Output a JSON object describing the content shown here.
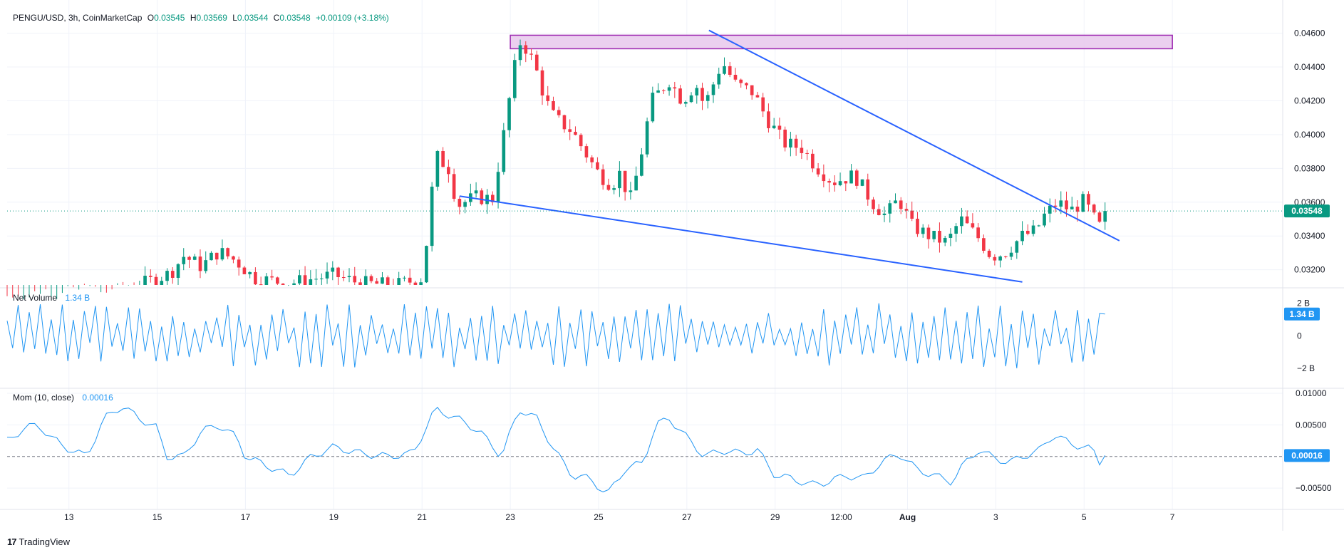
{
  "header": {
    "symbol": "PENGU/USD, 3h, CoinMarketCap",
    "o_label": "O",
    "o_value": "0.03545",
    "h_label": "H",
    "h_value": "0.03569",
    "l_label": "L",
    "l_value": "0.03544",
    "c_label": "C",
    "c_value": "0.03548",
    "change": "+0.00109 (+3.18%)"
  },
  "volume_legend": {
    "name": "Net Volume",
    "value": "1.34 B"
  },
  "mom_legend": {
    "name": "Mom (10, close)",
    "value": "0.00016"
  },
  "brand": {
    "name": "TradingView"
  },
  "colors": {
    "up": "#089981",
    "down": "#f23645",
    "trend": "#2962ff",
    "zone_fill": "#e8c8ec",
    "zone_stroke": "#9c27b0",
    "indicator": "#2196f3"
  },
  "chart_data": [
    {
      "type": "candlestick",
      "title": "PENGU/USD, 3h, CoinMarketCap",
      "price_axis_ticks": [
        "0.04600",
        "0.04400",
        "0.04200",
        "0.04000",
        "0.03800",
        "0.03600",
        "0.03400",
        "0.03200"
      ],
      "ylim": [
        0.0311,
        0.0467
      ],
      "x_tick_labels": [
        {
          "label": "13",
          "day": 13
        },
        {
          "label": "15",
          "day": 15
        },
        {
          "label": "17",
          "day": 17
        },
        {
          "label": "19",
          "day": 19
        },
        {
          "label": "21",
          "day": 21
        },
        {
          "label": "23",
          "day": 23
        },
        {
          "label": "25",
          "day": 25
        },
        {
          "label": "27",
          "day": 27
        },
        {
          "label": "29",
          "day": 29
        },
        {
          "label": "12:00",
          "day": 30.5
        },
        {
          "label": "Aug",
          "day": 32
        },
        {
          "label": "3",
          "day": 34
        },
        {
          "label": "5",
          "day": 36
        },
        {
          "label": "7",
          "day": 38
        }
      ],
      "xlim_days": [
        11.6,
        40.5
      ],
      "last_price_label": "0.03548",
      "last_price": 0.03548,
      "candles_start_day": 11.6,
      "candle_interval_days": 0.125,
      "close_path_keypoints": [
        [
          11.6,
          0.0301
        ],
        [
          14.0,
          0.0305
        ],
        [
          15.3,
          0.0318
        ],
        [
          15.6,
          0.0328
        ],
        [
          16.0,
          0.0322
        ],
        [
          16.4,
          0.0331
        ],
        [
          16.8,
          0.0325
        ],
        [
          17.2,
          0.0315
        ],
        [
          18.0,
          0.0312
        ],
        [
          19.0,
          0.0317
        ],
        [
          19.6,
          0.0312
        ],
        [
          20.4,
          0.0311
        ],
        [
          21.0,
          0.0315
        ],
        [
          21.15,
          0.0346
        ],
        [
          21.3,
          0.0388
        ],
        [
          21.6,
          0.038
        ],
        [
          21.8,
          0.0358
        ],
        [
          22.2,
          0.0363
        ],
        [
          22.6,
          0.0362
        ],
        [
          22.85,
          0.04
        ],
        [
          23.0,
          0.0425
        ],
        [
          23.2,
          0.0455
        ],
        [
          23.4,
          0.045
        ],
        [
          23.6,
          0.0437
        ],
        [
          23.8,
          0.042
        ],
        [
          24.0,
          0.041
        ],
        [
          24.4,
          0.0402
        ],
        [
          24.8,
          0.0385
        ],
        [
          25.0,
          0.0377
        ],
        [
          25.3,
          0.037
        ],
        [
          25.5,
          0.0378
        ],
        [
          25.7,
          0.036
        ],
        [
          25.9,
          0.038
        ],
        [
          26.2,
          0.042
        ],
        [
          26.6,
          0.0432
        ],
        [
          26.9,
          0.042
        ],
        [
          27.2,
          0.043
        ],
        [
          27.4,
          0.0417
        ],
        [
          27.8,
          0.0443
        ],
        [
          28.1,
          0.043
        ],
        [
          28.5,
          0.0425
        ],
        [
          28.8,
          0.041
        ],
        [
          29.2,
          0.0395
        ],
        [
          29.6,
          0.0392
        ],
        [
          29.9,
          0.0382
        ],
        [
          30.3,
          0.0372
        ],
        [
          30.8,
          0.0376
        ],
        [
          31.2,
          0.036
        ],
        [
          31.5,
          0.0352
        ],
        [
          31.8,
          0.0362
        ],
        [
          32.1,
          0.0346
        ],
        [
          32.5,
          0.034
        ],
        [
          32.9,
          0.0336
        ],
        [
          33.2,
          0.035
        ],
        [
          33.6,
          0.0339
        ],
        [
          33.9,
          0.0328
        ],
        [
          34.2,
          0.033
        ],
        [
          34.6,
          0.034
        ],
        [
          34.9,
          0.0343
        ],
        [
          35.1,
          0.0352
        ],
        [
          35.4,
          0.036
        ],
        [
          35.7,
          0.0355
        ],
        [
          36.0,
          0.0361
        ],
        [
          36.2,
          0.0351
        ],
        [
          36.4,
          0.0344
        ],
        [
          36.5,
          0.03548
        ]
      ],
      "resistance_zone": {
        "y_top": 0.04588,
        "y_bottom": 0.04508,
        "x_start_day": 23.0,
        "x_end_day": 38.0
      },
      "trendlines": [
        {
          "name": "",
          "p1": {
            "day": 27.5,
            "price": 0.04617
          },
          "p2": {
            "day": 36.8,
            "price": 0.03372
          }
        },
        {
          "name": "",
          "p1": {
            "day": 21.85,
            "price": 0.03636
          },
          "p2": {
            "day": 34.6,
            "price": 0.03128
          }
        }
      ]
    },
    {
      "type": "line",
      "name": "Net Volume",
      "axis_ticks": [
        "2 B",
        "0",
        "−2 B"
      ],
      "ylim": [
        -3.0,
        2.6
      ],
      "last_value_label": "1.34 B",
      "last_value": 1.34
    },
    {
      "type": "line",
      "name": "Mom (10, close)",
      "axis_ticks": [
        "0.01000",
        "0.00500",
        "−0.00500"
      ],
      "ylim": [
        -0.0078,
        0.01
      ],
      "last_value_label": "0.00016",
      "last_value": 0.00016,
      "mom_path_keypoints": [
        [
          11.6,
          0.0025
        ],
        [
          12.0,
          0.0045
        ],
        [
          12.3,
          0.005
        ],
        [
          12.6,
          0.003
        ],
        [
          12.9,
          0.0015
        ],
        [
          13.4,
          0.0
        ],
        [
          13.8,
          0.006
        ],
        [
          14.2,
          0.008
        ],
        [
          14.6,
          0.006
        ],
        [
          15.0,
          0.0045
        ],
        [
          15.2,
          0.0
        ],
        [
          15.6,
          0.0
        ],
        [
          16.0,
          0.004
        ],
        [
          16.4,
          0.005
        ],
        [
          16.8,
          0.003
        ],
        [
          17.0,
          0.0
        ],
        [
          17.5,
          -0.0015
        ],
        [
          18.0,
          -0.003
        ],
        [
          18.5,
          0.0
        ],
        [
          19.0,
          0.0015
        ],
        [
          19.6,
          0.0005
        ],
        [
          20.2,
          0.0
        ],
        [
          20.8,
          0.0005
        ],
        [
          21.3,
          0.0075
        ],
        [
          21.8,
          0.006
        ],
        [
          22.3,
          0.004
        ],
        [
          22.8,
          0.0
        ],
        [
          23.2,
          0.0075
        ],
        [
          23.6,
          0.006
        ],
        [
          24.0,
          0.001
        ],
        [
          24.4,
          -0.003
        ],
        [
          24.8,
          -0.0035
        ],
        [
          25.2,
          -0.006
        ],
        [
          25.6,
          -0.002
        ],
        [
          26.0,
          -0.001
        ],
        [
          26.3,
          0.005
        ],
        [
          26.6,
          0.006
        ],
        [
          27.0,
          0.003
        ],
        [
          27.4,
          0.0
        ],
        [
          27.8,
          0.001
        ],
        [
          28.2,
          0.0005
        ],
        [
          28.6,
          0.001
        ],
        [
          29.0,
          -0.003
        ],
        [
          29.4,
          -0.0035
        ],
        [
          29.8,
          -0.0045
        ],
        [
          30.2,
          -0.004
        ],
        [
          30.6,
          -0.003
        ],
        [
          31.0,
          -0.0035
        ],
        [
          31.4,
          -0.001
        ],
        [
          31.8,
          0.0005
        ],
        [
          32.2,
          -0.002
        ],
        [
          32.6,
          -0.003
        ],
        [
          33.0,
          -0.004
        ],
        [
          33.3,
          -0.001
        ],
        [
          33.6,
          0.001
        ],
        [
          33.9,
          0.0
        ],
        [
          34.3,
          -0.001
        ],
        [
          34.6,
          0.0
        ],
        [
          35.0,
          0.001
        ],
        [
          35.3,
          0.0035
        ],
        [
          35.7,
          0.002
        ],
        [
          36.0,
          0.0015
        ],
        [
          36.2,
          0.001
        ],
        [
          36.4,
          -0.0015
        ],
        [
          36.5,
          0.00016
        ]
      ]
    }
  ]
}
